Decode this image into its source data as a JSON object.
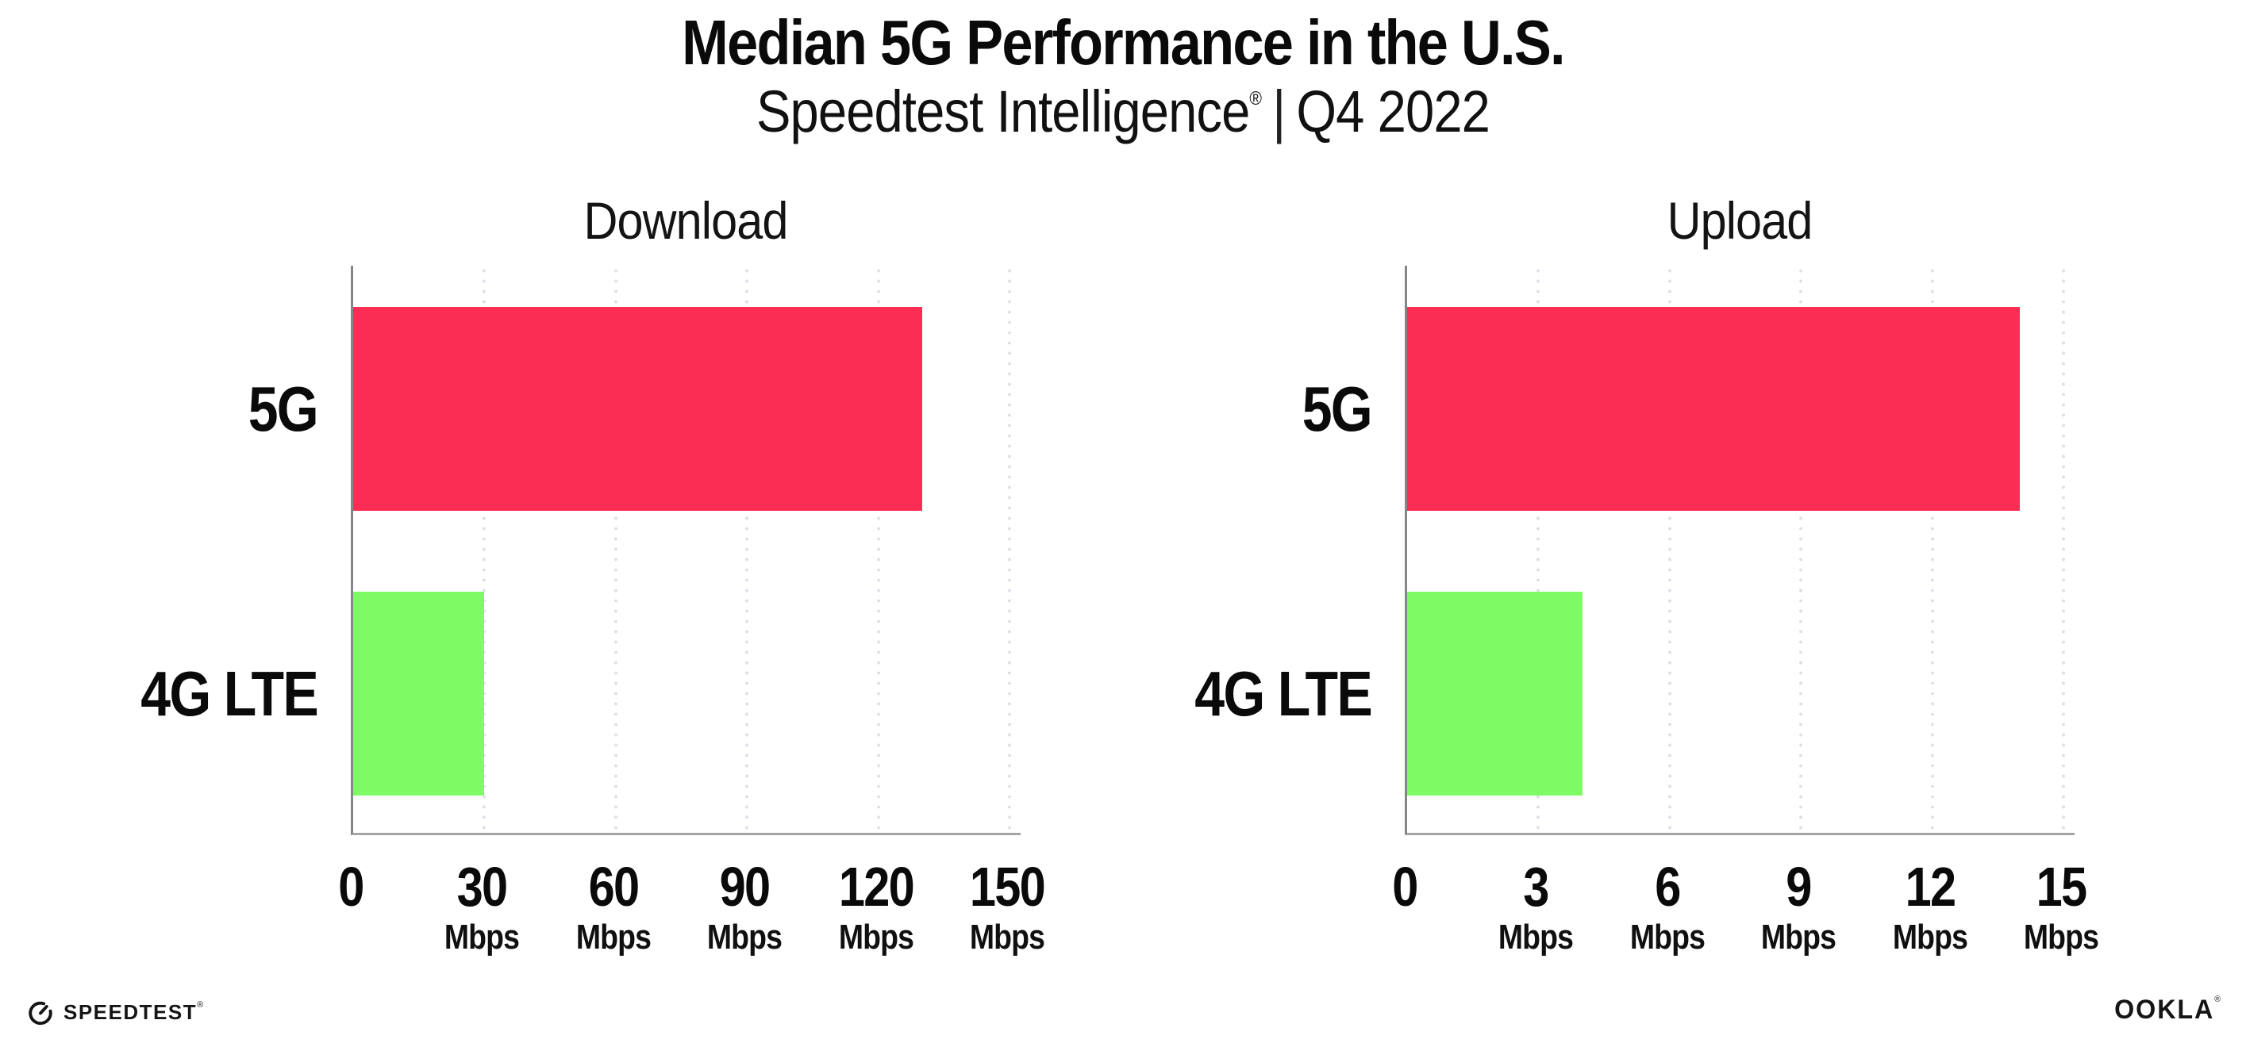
{
  "header": {
    "title": "Median 5G Performance in the U.S.",
    "subtitle_brand": "Speedtest Intelligence",
    "subtitle_reg": "®",
    "subtitle_separator": "|",
    "subtitle_period": "Q4 2022"
  },
  "chart_data": [
    {
      "type": "bar",
      "orientation": "horizontal",
      "title": "Download",
      "categories": [
        "5G",
        "4G LTE"
      ],
      "values": [
        130,
        30
      ],
      "value_unit": "Mbps",
      "xlim": [
        0,
        153
      ],
      "xticks": [
        0,
        30,
        60,
        90,
        120,
        150
      ],
      "xtick_unit": "Mbps",
      "bar_colors": [
        "#FC2D55",
        "#7EFA64"
      ],
      "grid": "dotted-vertical-at-every-tick",
      "legend": "none"
    },
    {
      "type": "bar",
      "orientation": "horizontal",
      "title": "Upload",
      "categories": [
        "5G",
        "4G LTE"
      ],
      "values": [
        14,
        4
      ],
      "value_unit": "Mbps",
      "xlim": [
        0,
        15.3
      ],
      "xticks": [
        0,
        3,
        6,
        9,
        12,
        15
      ],
      "xtick_unit": "Mbps",
      "bar_colors": [
        "#FC2D55",
        "#7EFA64"
      ],
      "grid": "dotted-vertical-at-every-tick",
      "legend": "none"
    }
  ],
  "footer": {
    "speedtest_label": "SPEEDTEST",
    "speedtest_reg": "®",
    "ookla_label": "OOKLA",
    "ookla_reg": "®"
  }
}
